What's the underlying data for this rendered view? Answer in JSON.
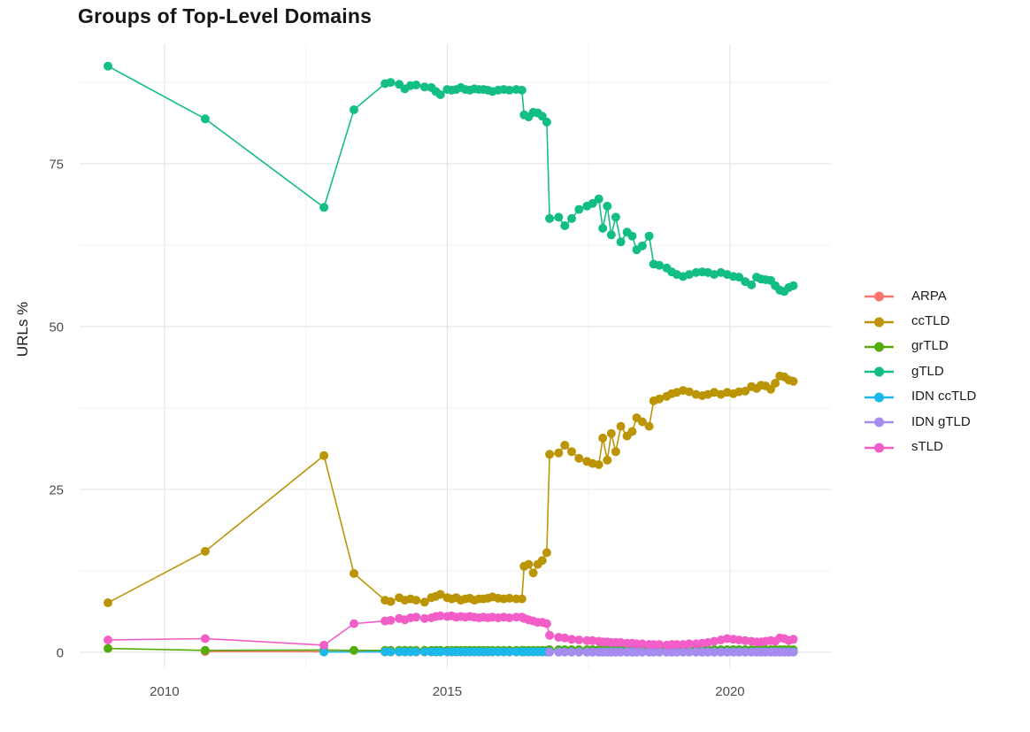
{
  "title": "Groups of Top-Level Domains",
  "y_axis_label": "URLs %",
  "chart_data": {
    "type": "line",
    "title": "Groups of Top-Level Domains",
    "xlabel": "",
    "ylabel": "URLs %",
    "grid": true,
    "legend_position": "right",
    "xlim": [
      2008.5,
      2021.8
    ],
    "ylim": [
      -2.45,
      93.35
    ],
    "x_ticks": [
      2010,
      2015,
      2020
    ],
    "x_minor_ticks": [
      2012.5,
      2017.5
    ],
    "y_ticks": [
      0,
      25,
      50,
      75
    ],
    "y_minor_ticks": [
      12.5,
      37.5,
      62.5,
      87.5
    ],
    "series": [
      {
        "name": "ARPA",
        "color": "#F8766D",
        "x": [
          2010.72,
          2012.82,
          2013.9,
          2014.0,
          2014.15,
          2014.25,
          2014.35,
          2014.45,
          2014.6,
          2014.72,
          2014.8,
          2014.88,
          2015.0,
          2015.08,
          2015.16,
          2015.24,
          2015.32,
          2015.4,
          2015.48,
          2015.56,
          2015.64,
          2015.72,
          2015.8,
          2015.9,
          2016.0,
          2016.1,
          2016.22,
          2016.32,
          2016.36,
          2016.44,
          2016.52,
          2016.6,
          2016.68,
          2016.76,
          2016.81,
          2016.97,
          2017.08,
          2017.2,
          2017.33,
          2017.47,
          2017.57,
          2017.68,
          2017.75,
          2017.83,
          2017.9,
          2017.98,
          2018.07,
          2018.18,
          2018.27,
          2018.35,
          2018.45,
          2018.57,
          2018.65,
          2018.75,
          2018.88,
          2018.97,
          2019.06,
          2019.17,
          2019.28,
          2019.4,
          2019.51,
          2019.61,
          2019.72,
          2019.84,
          2019.95,
          2020.06,
          2020.16,
          2020.27,
          2020.38,
          2020.47,
          2020.55,
          2020.63,
          2020.72,
          2020.8,
          2020.88,
          2020.96,
          2021.04,
          2021.12
        ],
        "y": [
          0.12,
          0.1,
          0.05,
          0.05,
          0.05,
          0.05,
          0.05,
          0.05,
          0.05,
          0.05,
          0.05,
          0.05,
          0.05,
          0.05,
          0.05,
          0.05,
          0.05,
          0.05,
          0.05,
          0.05,
          0.05,
          0.05,
          0.05,
          0.05,
          0.05,
          0.05,
          0.05,
          0.05,
          0.05,
          0.05,
          0.05,
          0.05,
          0.05,
          0.05,
          0.05,
          0.05,
          0.05,
          0.05,
          0.05,
          0.05,
          0.05,
          0.05,
          0.05,
          0.05,
          0.05,
          0.05,
          0.05,
          0.05,
          0.05,
          0.05,
          0.05,
          0.05,
          0.05,
          0.05,
          0.05,
          0.05,
          0.05,
          0.05,
          0.05,
          0.05,
          0.05,
          0.05,
          0.05,
          0.05,
          0.05,
          0.05,
          0.05,
          0.05,
          0.05,
          0.05,
          0.05,
          0.05,
          0.05,
          0.05,
          0.05,
          0.05,
          0.05,
          0.05
        ]
      },
      {
        "name": "ccTLD",
        "color": "#BC9507",
        "x": [
          2009.0,
          2010.72,
          2012.82,
          2013.35,
          2013.9,
          2014.0,
          2014.15,
          2014.25,
          2014.35,
          2014.45,
          2014.6,
          2014.72,
          2014.8,
          2014.88,
          2015.0,
          2015.08,
          2015.16,
          2015.24,
          2015.32,
          2015.4,
          2015.48,
          2015.56,
          2015.64,
          2015.72,
          2015.8,
          2015.9,
          2016.0,
          2016.1,
          2016.22,
          2016.32,
          2016.36,
          2016.44,
          2016.52,
          2016.6,
          2016.68,
          2016.76,
          2016.81,
          2016.97,
          2017.08,
          2017.2,
          2017.33,
          2017.47,
          2017.57,
          2017.68,
          2017.75,
          2017.83,
          2017.9,
          2017.98,
          2018.07,
          2018.18,
          2018.27,
          2018.35,
          2018.45,
          2018.57,
          2018.65,
          2018.75,
          2018.88,
          2018.97,
          2019.06,
          2019.17,
          2019.28,
          2019.4,
          2019.51,
          2019.61,
          2019.72,
          2019.84,
          2019.95,
          2020.06,
          2020.16,
          2020.27,
          2020.38,
          2020.47,
          2020.55,
          2020.63,
          2020.72,
          2020.8,
          2020.88,
          2020.96,
          2021.04,
          2021.12
        ],
        "y": [
          7.6,
          15.5,
          30.2,
          12.1,
          8.0,
          7.8,
          8.4,
          8.0,
          8.2,
          8.0,
          7.7,
          8.4,
          8.6,
          8.9,
          8.4,
          8.2,
          8.4,
          8.0,
          8.2,
          8.3,
          8.0,
          8.2,
          8.2,
          8.3,
          8.5,
          8.3,
          8.2,
          8.3,
          8.2,
          8.2,
          13.2,
          13.5,
          12.2,
          13.5,
          14.1,
          15.3,
          30.4,
          30.6,
          31.8,
          30.8,
          29.8,
          29.3,
          29.0,
          28.8,
          32.9,
          29.5,
          33.6,
          30.8,
          34.7,
          33.2,
          33.9,
          36.0,
          35.4,
          34.7,
          38.6,
          38.9,
          39.3,
          39.7,
          39.9,
          40.2,
          40.0,
          39.6,
          39.4,
          39.6,
          39.9,
          39.6,
          39.9,
          39.7,
          40.0,
          40.1,
          40.8,
          40.5,
          41.0,
          40.9,
          40.4,
          41.3,
          42.4,
          42.3,
          41.8,
          41.6
        ]
      },
      {
        "name": "grTLD",
        "color": "#54AC0B",
        "x": [
          2009.0,
          2010.72,
          2012.82,
          2013.35,
          2013.9,
          2014.0,
          2014.15,
          2014.25,
          2014.35,
          2014.45,
          2014.6,
          2014.72,
          2014.8,
          2014.88,
          2015.0,
          2015.08,
          2015.16,
          2015.24,
          2015.32,
          2015.4,
          2015.48,
          2015.56,
          2015.64,
          2015.72,
          2015.8,
          2015.9,
          2016.0,
          2016.1,
          2016.22,
          2016.32,
          2016.36,
          2016.44,
          2016.52,
          2016.6,
          2016.68,
          2016.76,
          2016.81,
          2016.97,
          2017.08,
          2017.2,
          2017.33,
          2017.47,
          2017.57,
          2017.68,
          2017.75,
          2017.83,
          2017.9,
          2017.98,
          2018.07,
          2018.18,
          2018.27,
          2018.35,
          2018.45,
          2018.57,
          2018.65,
          2018.75,
          2018.88,
          2018.97,
          2019.06,
          2019.17,
          2019.28,
          2019.4,
          2019.51,
          2019.61,
          2019.72,
          2019.84,
          2019.95,
          2020.06,
          2020.16,
          2020.27,
          2020.38,
          2020.47,
          2020.55,
          2020.63,
          2020.72,
          2020.8,
          2020.88,
          2020.96,
          2021.04,
          2021.12
        ],
        "y": [
          0.6,
          0.3,
          0.35,
          0.3,
          0.3,
          0.3,
          0.3,
          0.3,
          0.3,
          0.3,
          0.3,
          0.3,
          0.3,
          0.3,
          0.3,
          0.3,
          0.3,
          0.3,
          0.3,
          0.3,
          0.3,
          0.3,
          0.3,
          0.3,
          0.3,
          0.3,
          0.3,
          0.3,
          0.3,
          0.3,
          0.3,
          0.3,
          0.3,
          0.3,
          0.3,
          0.3,
          0.4,
          0.4,
          0.4,
          0.4,
          0.4,
          0.4,
          0.4,
          0.4,
          0.4,
          0.4,
          0.4,
          0.4,
          0.4,
          0.4,
          0.4,
          0.4,
          0.4,
          0.4,
          0.4,
          0.4,
          0.4,
          0.4,
          0.4,
          0.4,
          0.4,
          0.4,
          0.4,
          0.4,
          0.4,
          0.4,
          0.4,
          0.4,
          0.4,
          0.4,
          0.4,
          0.4,
          0.4,
          0.4,
          0.4,
          0.4,
          0.4,
          0.4,
          0.4,
          0.4
        ]
      },
      {
        "name": "gTLD",
        "color": "#13BE85",
        "x": [
          2009.0,
          2010.72,
          2012.82,
          2013.35,
          2013.9,
          2014.0,
          2014.15,
          2014.25,
          2014.35,
          2014.45,
          2014.6,
          2014.72,
          2014.8,
          2014.88,
          2015.0,
          2015.08,
          2015.16,
          2015.24,
          2015.32,
          2015.4,
          2015.48,
          2015.56,
          2015.64,
          2015.72,
          2015.8,
          2015.9,
          2016.0,
          2016.1,
          2016.22,
          2016.32,
          2016.36,
          2016.44,
          2016.52,
          2016.6,
          2016.68,
          2016.76,
          2016.81,
          2016.97,
          2017.08,
          2017.2,
          2017.33,
          2017.47,
          2017.57,
          2017.68,
          2017.75,
          2017.83,
          2017.9,
          2017.98,
          2018.07,
          2018.18,
          2018.27,
          2018.35,
          2018.45,
          2018.57,
          2018.65,
          2018.75,
          2018.88,
          2018.97,
          2019.06,
          2019.17,
          2019.28,
          2019.4,
          2019.51,
          2019.61,
          2019.72,
          2019.84,
          2019.95,
          2020.06,
          2020.16,
          2020.27,
          2020.38,
          2020.47,
          2020.55,
          2020.63,
          2020.72,
          2020.8,
          2020.88,
          2020.96,
          2021.04,
          2021.12
        ],
        "y": [
          90.0,
          81.9,
          68.3,
          83.3,
          87.3,
          87.5,
          87.2,
          86.5,
          87.0,
          87.1,
          86.8,
          86.7,
          86.1,
          85.6,
          86.4,
          86.3,
          86.4,
          86.7,
          86.4,
          86.3,
          86.5,
          86.4,
          86.4,
          86.3,
          86.1,
          86.3,
          86.4,
          86.3,
          86.4,
          86.3,
          82.5,
          82.2,
          82.9,
          82.8,
          82.3,
          81.4,
          66.6,
          66.8,
          65.5,
          66.6,
          68.0,
          68.5,
          68.9,
          69.6,
          65.1,
          68.5,
          64.1,
          66.8,
          63.0,
          64.5,
          63.9,
          61.8,
          62.4,
          63.9,
          59.6,
          59.4,
          59.0,
          58.4,
          58.0,
          57.7,
          58.0,
          58.3,
          58.4,
          58.3,
          58.0,
          58.3,
          58.0,
          57.7,
          57.6,
          56.9,
          56.4,
          57.6,
          57.3,
          57.2,
          57.1,
          56.3,
          55.6,
          55.4,
          56.0,
          56.3
        ]
      },
      {
        "name": "IDN ccTLD",
        "color": "#1BB8EA",
        "x": [
          2012.82,
          2013.9,
          2014.0,
          2014.15,
          2014.25,
          2014.35,
          2014.45,
          2014.6,
          2014.72,
          2014.8,
          2014.88,
          2015.0,
          2015.08,
          2015.16,
          2015.24,
          2015.32,
          2015.4,
          2015.48,
          2015.56,
          2015.64,
          2015.72,
          2015.8,
          2015.9,
          2016.0,
          2016.1,
          2016.22,
          2016.32,
          2016.36,
          2016.44,
          2016.52,
          2016.6,
          2016.68,
          2016.76,
          2016.81,
          2016.97,
          2017.08,
          2017.2,
          2017.33,
          2017.47,
          2017.57,
          2017.68,
          2017.75,
          2017.83,
          2017.9,
          2017.98,
          2018.07,
          2018.18,
          2018.27,
          2018.35,
          2018.45,
          2018.57,
          2018.65,
          2018.75,
          2018.88,
          2018.97,
          2019.06,
          2019.17,
          2019.28,
          2019.4,
          2019.51,
          2019.61,
          2019.72,
          2019.84,
          2019.95,
          2020.06,
          2020.16,
          2020.27,
          2020.38,
          2020.47,
          2020.55,
          2020.63,
          2020.72,
          2020.8,
          2020.88,
          2020.96,
          2021.04,
          2021.12
        ],
        "y": [
          0.05,
          0.08,
          0.08,
          0.08,
          0.08,
          0.08,
          0.08,
          0.08,
          0.08,
          0.08,
          0.08,
          0.08,
          0.08,
          0.08,
          0.08,
          0.08,
          0.08,
          0.08,
          0.08,
          0.08,
          0.08,
          0.08,
          0.08,
          0.08,
          0.08,
          0.08,
          0.08,
          0.08,
          0.08,
          0.08,
          0.08,
          0.08,
          0.08,
          0.08,
          0.08,
          0.08,
          0.08,
          0.08,
          0.08,
          0.08,
          0.08,
          0.08,
          0.08,
          0.08,
          0.08,
          0.08,
          0.08,
          0.08,
          0.08,
          0.08,
          0.08,
          0.08,
          0.08,
          0.08,
          0.08,
          0.08,
          0.08,
          0.08,
          0.08,
          0.08,
          0.08,
          0.08,
          0.08,
          0.08,
          0.08,
          0.08,
          0.08,
          0.08,
          0.08,
          0.08,
          0.08,
          0.08,
          0.08,
          0.08,
          0.08,
          0.08,
          0.08
        ]
      },
      {
        "name": "IDN gTLD",
        "color": "#A78CF0",
        "x": [
          2016.81,
          2016.97,
          2017.08,
          2017.2,
          2017.33,
          2017.47,
          2017.57,
          2017.68,
          2017.75,
          2017.83,
          2017.9,
          2017.98,
          2018.07,
          2018.18,
          2018.27,
          2018.35,
          2018.45,
          2018.57,
          2018.65,
          2018.75,
          2018.88,
          2018.97,
          2019.06,
          2019.17,
          2019.28,
          2019.4,
          2019.51,
          2019.61,
          2019.72,
          2019.84,
          2019.95,
          2020.06,
          2020.16,
          2020.27,
          2020.38,
          2020.47,
          2020.55,
          2020.63,
          2020.72,
          2020.8,
          2020.88,
          2020.96,
          2021.04,
          2021.12
        ],
        "y": [
          0.02,
          0.02,
          0.02,
          0.02,
          0.02,
          0.02,
          0.02,
          0.02,
          0.02,
          0.02,
          0.02,
          0.02,
          0.02,
          0.02,
          0.02,
          0.02,
          0.02,
          0.02,
          0.02,
          0.02,
          0.02,
          0.02,
          0.02,
          0.02,
          0.02,
          0.02,
          0.02,
          0.02,
          0.02,
          0.02,
          0.02,
          0.02,
          0.02,
          0.02,
          0.02,
          0.02,
          0.02,
          0.02,
          0.02,
          0.02,
          0.02,
          0.02,
          0.02,
          0.02
        ]
      },
      {
        "name": "sTLD",
        "color": "#F35DC8",
        "x": [
          2009.0,
          2010.72,
          2012.82,
          2013.35,
          2013.9,
          2014.0,
          2014.15,
          2014.25,
          2014.35,
          2014.45,
          2014.6,
          2014.72,
          2014.8,
          2014.88,
          2015.0,
          2015.08,
          2015.16,
          2015.24,
          2015.32,
          2015.4,
          2015.48,
          2015.56,
          2015.64,
          2015.72,
          2015.8,
          2015.9,
          2016.0,
          2016.1,
          2016.22,
          2016.32,
          2016.36,
          2016.44,
          2016.52,
          2016.6,
          2016.68,
          2016.76,
          2016.81,
          2016.97,
          2017.08,
          2017.2,
          2017.33,
          2017.47,
          2017.57,
          2017.68,
          2017.75,
          2017.83,
          2017.9,
          2017.98,
          2018.07,
          2018.18,
          2018.27,
          2018.35,
          2018.45,
          2018.57,
          2018.65,
          2018.75,
          2018.88,
          2018.97,
          2019.06,
          2019.17,
          2019.28,
          2019.4,
          2019.51,
          2019.61,
          2019.72,
          2019.84,
          2019.95,
          2020.06,
          2020.16,
          2020.27,
          2020.38,
          2020.47,
          2020.55,
          2020.63,
          2020.72,
          2020.8,
          2020.88,
          2020.96,
          2021.04,
          2021.12
        ],
        "y": [
          1.9,
          2.1,
          1.1,
          4.4,
          4.8,
          4.9,
          5.2,
          5.0,
          5.3,
          5.4,
          5.2,
          5.3,
          5.5,
          5.6,
          5.5,
          5.6,
          5.4,
          5.5,
          5.4,
          5.5,
          5.4,
          5.3,
          5.4,
          5.3,
          5.4,
          5.3,
          5.4,
          5.3,
          5.4,
          5.4,
          5.2,
          5.0,
          4.8,
          4.6,
          4.6,
          4.4,
          2.6,
          2.3,
          2.2,
          2.0,
          1.9,
          1.8,
          1.8,
          1.7,
          1.6,
          1.6,
          1.5,
          1.5,
          1.5,
          1.4,
          1.4,
          1.3,
          1.3,
          1.2,
          1.2,
          1.2,
          1.1,
          1.2,
          1.2,
          1.2,
          1.3,
          1.3,
          1.4,
          1.5,
          1.7,
          1.9,
          2.1,
          2.0,
          1.9,
          1.8,
          1.7,
          1.6,
          1.6,
          1.7,
          1.8,
          1.7,
          2.2,
          2.1,
          1.8,
          2.0
        ]
      }
    ]
  }
}
